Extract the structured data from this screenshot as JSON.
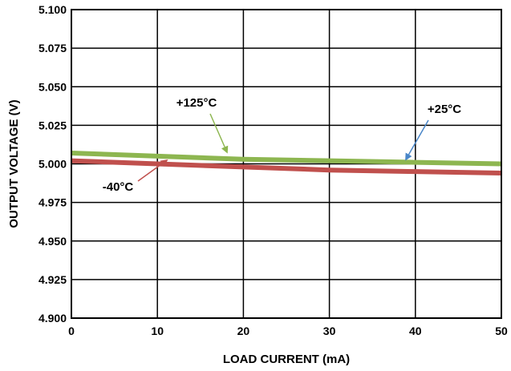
{
  "chart_data": {
    "type": "line",
    "title": "",
    "xlabel": "LOAD CURRENT (mA)",
    "ylabel": "OUTPUT VOLTAGE (V)",
    "xlim": [
      0,
      50
    ],
    "ylim": [
      4.9,
      5.1
    ],
    "x_ticks": [
      "0",
      "10",
      "20",
      "30",
      "40",
      "50"
    ],
    "y_ticks": [
      "4.900",
      "4.925",
      "4.950",
      "4.975",
      "5.000",
      "5.025",
      "5.050",
      "5.075",
      "5.100"
    ],
    "grid": true,
    "series": [
      {
        "name": "+125°C",
        "color": "#8db650",
        "x": [
          0,
          10,
          20,
          30,
          40,
          50
        ],
        "y": [
          5.007,
          5.005,
          5.003,
          5.002,
          5.001,
          5.0
        ]
      },
      {
        "name": "+25°C",
        "color": "#4a86c8",
        "x": [
          0,
          10,
          20,
          30,
          40,
          50
        ],
        "y": [
          5.007,
          5.005,
          5.003,
          5.002,
          5.001,
          5.0
        ]
      },
      {
        "name": "-40°C",
        "color": "#c0504d",
        "x": [
          0,
          10,
          20,
          30,
          40,
          50
        ],
        "y": [
          5.002,
          5.0,
          4.998,
          4.996,
          4.995,
          4.994
        ]
      }
    ]
  }
}
